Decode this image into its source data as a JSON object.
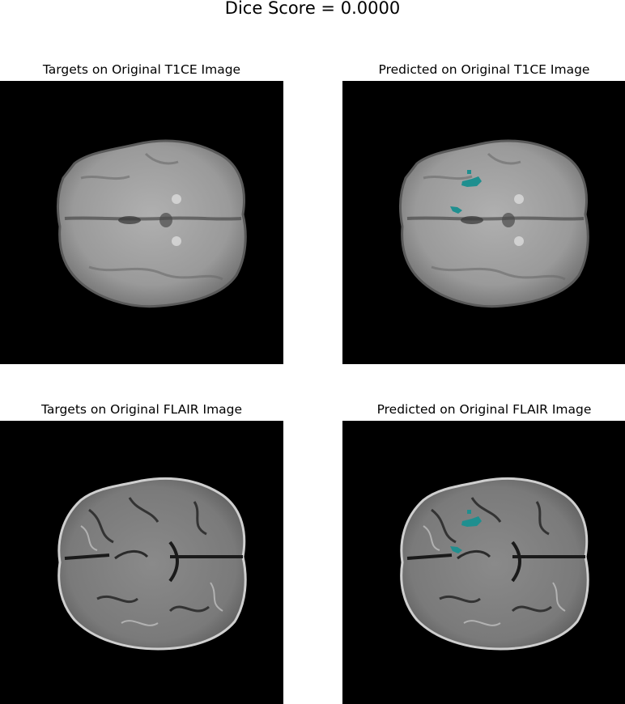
{
  "figure": {
    "suptitle": "Dice Score = 0.0000"
  },
  "panels": [
    {
      "title": "Targets on Original T1CE Image",
      "modality": "T1CE",
      "overlay": "targets"
    },
    {
      "title": "Predicted on Original T1CE Image",
      "modality": "T1CE",
      "overlay": "predicted"
    },
    {
      "title": "Targets on Original FLAIR Image",
      "modality": "FLAIR",
      "overlay": "targets"
    },
    {
      "title": "Predicted on Original FLAIR Image",
      "modality": "FLAIR",
      "overlay": "predicted"
    }
  ],
  "colors": {
    "background": "#000000",
    "prediction_overlay": "#1f8f8f"
  }
}
